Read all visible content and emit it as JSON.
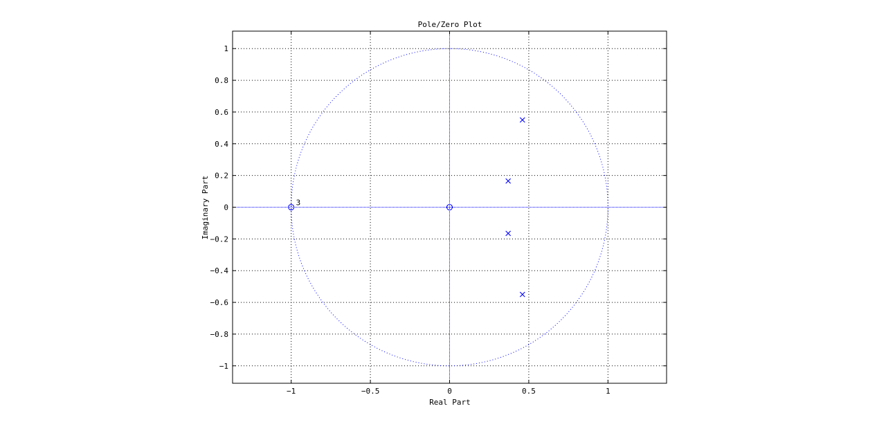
{
  "chart_data": {
    "type": "scatter",
    "title": "Pole/Zero Plot",
    "xlabel": "Real Part",
    "ylabel": "Imaginary Part",
    "xlim": [
      -1.37,
      1.37
    ],
    "ylim": [
      -1.11,
      1.11
    ],
    "xticks": [
      -1,
      -0.5,
      0,
      0.5,
      1
    ],
    "yticks": [
      -1,
      -0.8,
      -0.6,
      -0.4,
      -0.2,
      0,
      0.2,
      0.4,
      0.6,
      0.8,
      1
    ],
    "xtick_labels": [
      "−1",
      "−0.5",
      "0",
      "0.5",
      "1"
    ],
    "ytick_labels": [
      "−1",
      "−0.8",
      "−0.6",
      "−0.4",
      "−0.2",
      "0",
      "0.2",
      "0.4",
      "0.6",
      "0.8",
      "1"
    ],
    "grid": true,
    "unit_circle": true,
    "colors": {
      "marks": "#0000ff",
      "grid": "#000000",
      "unit_circle": "#0000ff",
      "axes": "#000000"
    },
    "zeros": [
      {
        "x": -1,
        "y": 0,
        "multiplicity": "3"
      },
      {
        "x": 0,
        "y": 0
      }
    ],
    "poles": [
      {
        "x": 0.46,
        "y": 0.55
      },
      {
        "x": 0.37,
        "y": 0.165
      },
      {
        "x": 0.37,
        "y": -0.165
      },
      {
        "x": 0.46,
        "y": -0.55
      }
    ]
  }
}
